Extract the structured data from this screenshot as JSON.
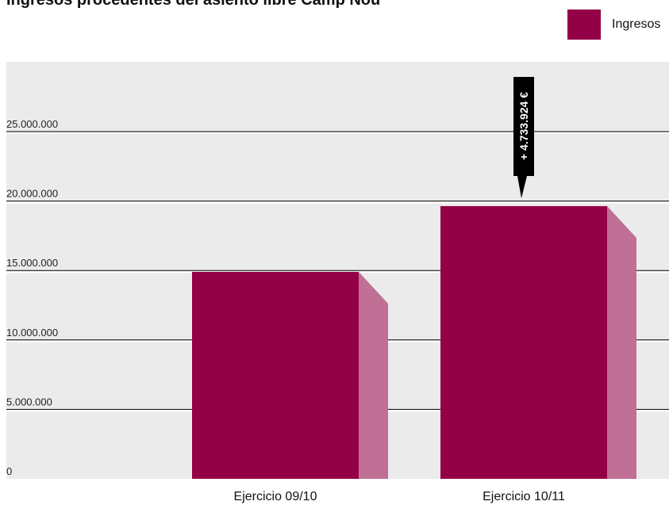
{
  "chart_data": {
    "type": "bar",
    "title": "Ingresos procedentes del asiento libre Camp Nou",
    "categories": [
      "Ejercicio 09/10",
      "Ejercicio 10/11"
    ],
    "series": [
      {
        "name": "Ingresos",
        "values": [
          14900000,
          19633924
        ]
      }
    ],
    "yticks": [
      "0",
      "5.000.000",
      "10.000.000",
      "15.000.000",
      "20.000.000",
      "25.000.000"
    ],
    "ylim": [
      0,
      25000000
    ],
    "annotation": "+ 4.733.924 €",
    "legend": "top-right",
    "grid": true
  },
  "colors": {
    "bar": "#930045",
    "bar_side": "#c07095",
    "plot_bg": "#ebebeb",
    "callout": "#000000"
  }
}
